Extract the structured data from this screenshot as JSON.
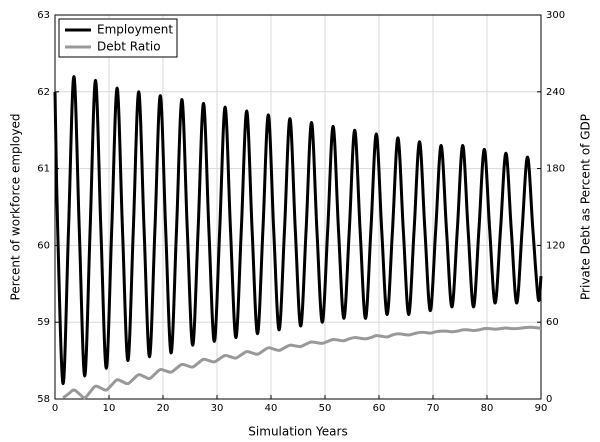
{
  "chart_data": {
    "type": "line",
    "xlabel": "Simulation Years",
    "ylabel": "Percent of workforce employed",
    "y2label": "Private Debt as Percent of GDP",
    "x": [
      0,
      0.5,
      1.5,
      2.5,
      3.5,
      4.5,
      5.5,
      6.5,
      7.5,
      8.5,
      9.5,
      10.5,
      11.5,
      12.5,
      13.5,
      14.5,
      15.5,
      16.5,
      17.5,
      18.5,
      19.5,
      20.5,
      21.5,
      22.5,
      23.5,
      24.5,
      25.5,
      26.5,
      27.5,
      28.5,
      29.5,
      30.5,
      31.5,
      32.5,
      33.5,
      34.5,
      35.5,
      36.5,
      37.5,
      38.5,
      39.5,
      40.5,
      41.5,
      42.5,
      43.5,
      44.5,
      45.5,
      46.5,
      47.5,
      48.5,
      49.5,
      50.5,
      51.5,
      52.5,
      53.5,
      54.5,
      55.5,
      56.5,
      57.5,
      58.5,
      59.5,
      60.5,
      61.5,
      62.5,
      63.5,
      64.5,
      65.5,
      66.5,
      67.5,
      68.5,
      69.5,
      70.5,
      71.5,
      72.5,
      73.5,
      74.5,
      75.5,
      76.5,
      77.5,
      78.5,
      79.5,
      80.5,
      81.5,
      82.5,
      83.5,
      84.5,
      85.5,
      86.5,
      87.5,
      88.5,
      89.5,
      90
    ],
    "series": [
      {
        "name": "Employment",
        "color": "#000000",
        "axis": "y",
        "values": [
          62.0,
          60.2,
          58.2,
          60.2,
          62.2,
          60.2,
          58.3,
          60.2,
          62.15,
          60.2,
          58.4,
          60.2,
          62.05,
          60.2,
          58.5,
          60.2,
          62.0,
          60.2,
          58.55,
          60.2,
          61.95,
          60.2,
          58.6,
          60.2,
          61.9,
          60.2,
          58.7,
          60.2,
          61.85,
          60.2,
          58.75,
          60.2,
          61.8,
          60.2,
          58.8,
          60.2,
          61.75,
          60.2,
          58.85,
          60.2,
          61.7,
          60.2,
          58.9,
          60.2,
          61.65,
          60.2,
          58.95,
          60.2,
          61.6,
          60.2,
          59.0,
          60.2,
          61.55,
          60.2,
          59.05,
          60.2,
          61.5,
          60.2,
          59.05,
          60.2,
          61.45,
          60.2,
          59.1,
          60.2,
          61.4,
          60.2,
          59.1,
          60.2,
          61.35,
          60.2,
          59.15,
          60.2,
          61.3,
          60.2,
          59.2,
          60.2,
          61.3,
          60.2,
          59.2,
          60.2,
          61.25,
          60.2,
          59.25,
          60.2,
          61.2,
          60.2,
          59.25,
          60.2,
          61.15,
          60.2,
          59.3,
          59.6
        ]
      },
      {
        "name": "Debt Ratio",
        "color": "#999999",
        "axis": "y2",
        "values": [
          null,
          null,
          1,
          4,
          7,
          4,
          1,
          5.5,
          10,
          8.5,
          7,
          11,
          15,
          13.5,
          12,
          15.5,
          19,
          17.5,
          16,
          19.5,
          23,
          22,
          21,
          24,
          27,
          26,
          25,
          28,
          31,
          30,
          29,
          31.5,
          34,
          33,
          32,
          34.5,
          37,
          36,
          35,
          37.5,
          40,
          39,
          38,
          40,
          42,
          41.5,
          41,
          43,
          44.5,
          44,
          43.5,
          45,
          46.5,
          46,
          45.5,
          47,
          48,
          47.5,
          47,
          48,
          49.5,
          49,
          48.5,
          50,
          51,
          50.5,
          50,
          51,
          52,
          52,
          51.5,
          52.5,
          53,
          53,
          52.5,
          53,
          54,
          54,
          53.5,
          54,
          55,
          55,
          54.5,
          55,
          55.5,
          55,
          55,
          55.5,
          56,
          56,
          55.5,
          55.6
        ]
      }
    ],
    "xlim": [
      0,
      90
    ],
    "xticks": [
      0,
      10,
      20,
      30,
      40,
      50,
      60,
      70,
      80,
      90
    ],
    "ylim": [
      58,
      63
    ],
    "yticks": [
      58,
      59,
      60,
      61,
      62,
      63
    ],
    "y2lim": [
      0,
      300
    ],
    "y2ticks": [
      0,
      60,
      120,
      180,
      240,
      300
    ],
    "grid": true,
    "legend": "upper left"
  }
}
